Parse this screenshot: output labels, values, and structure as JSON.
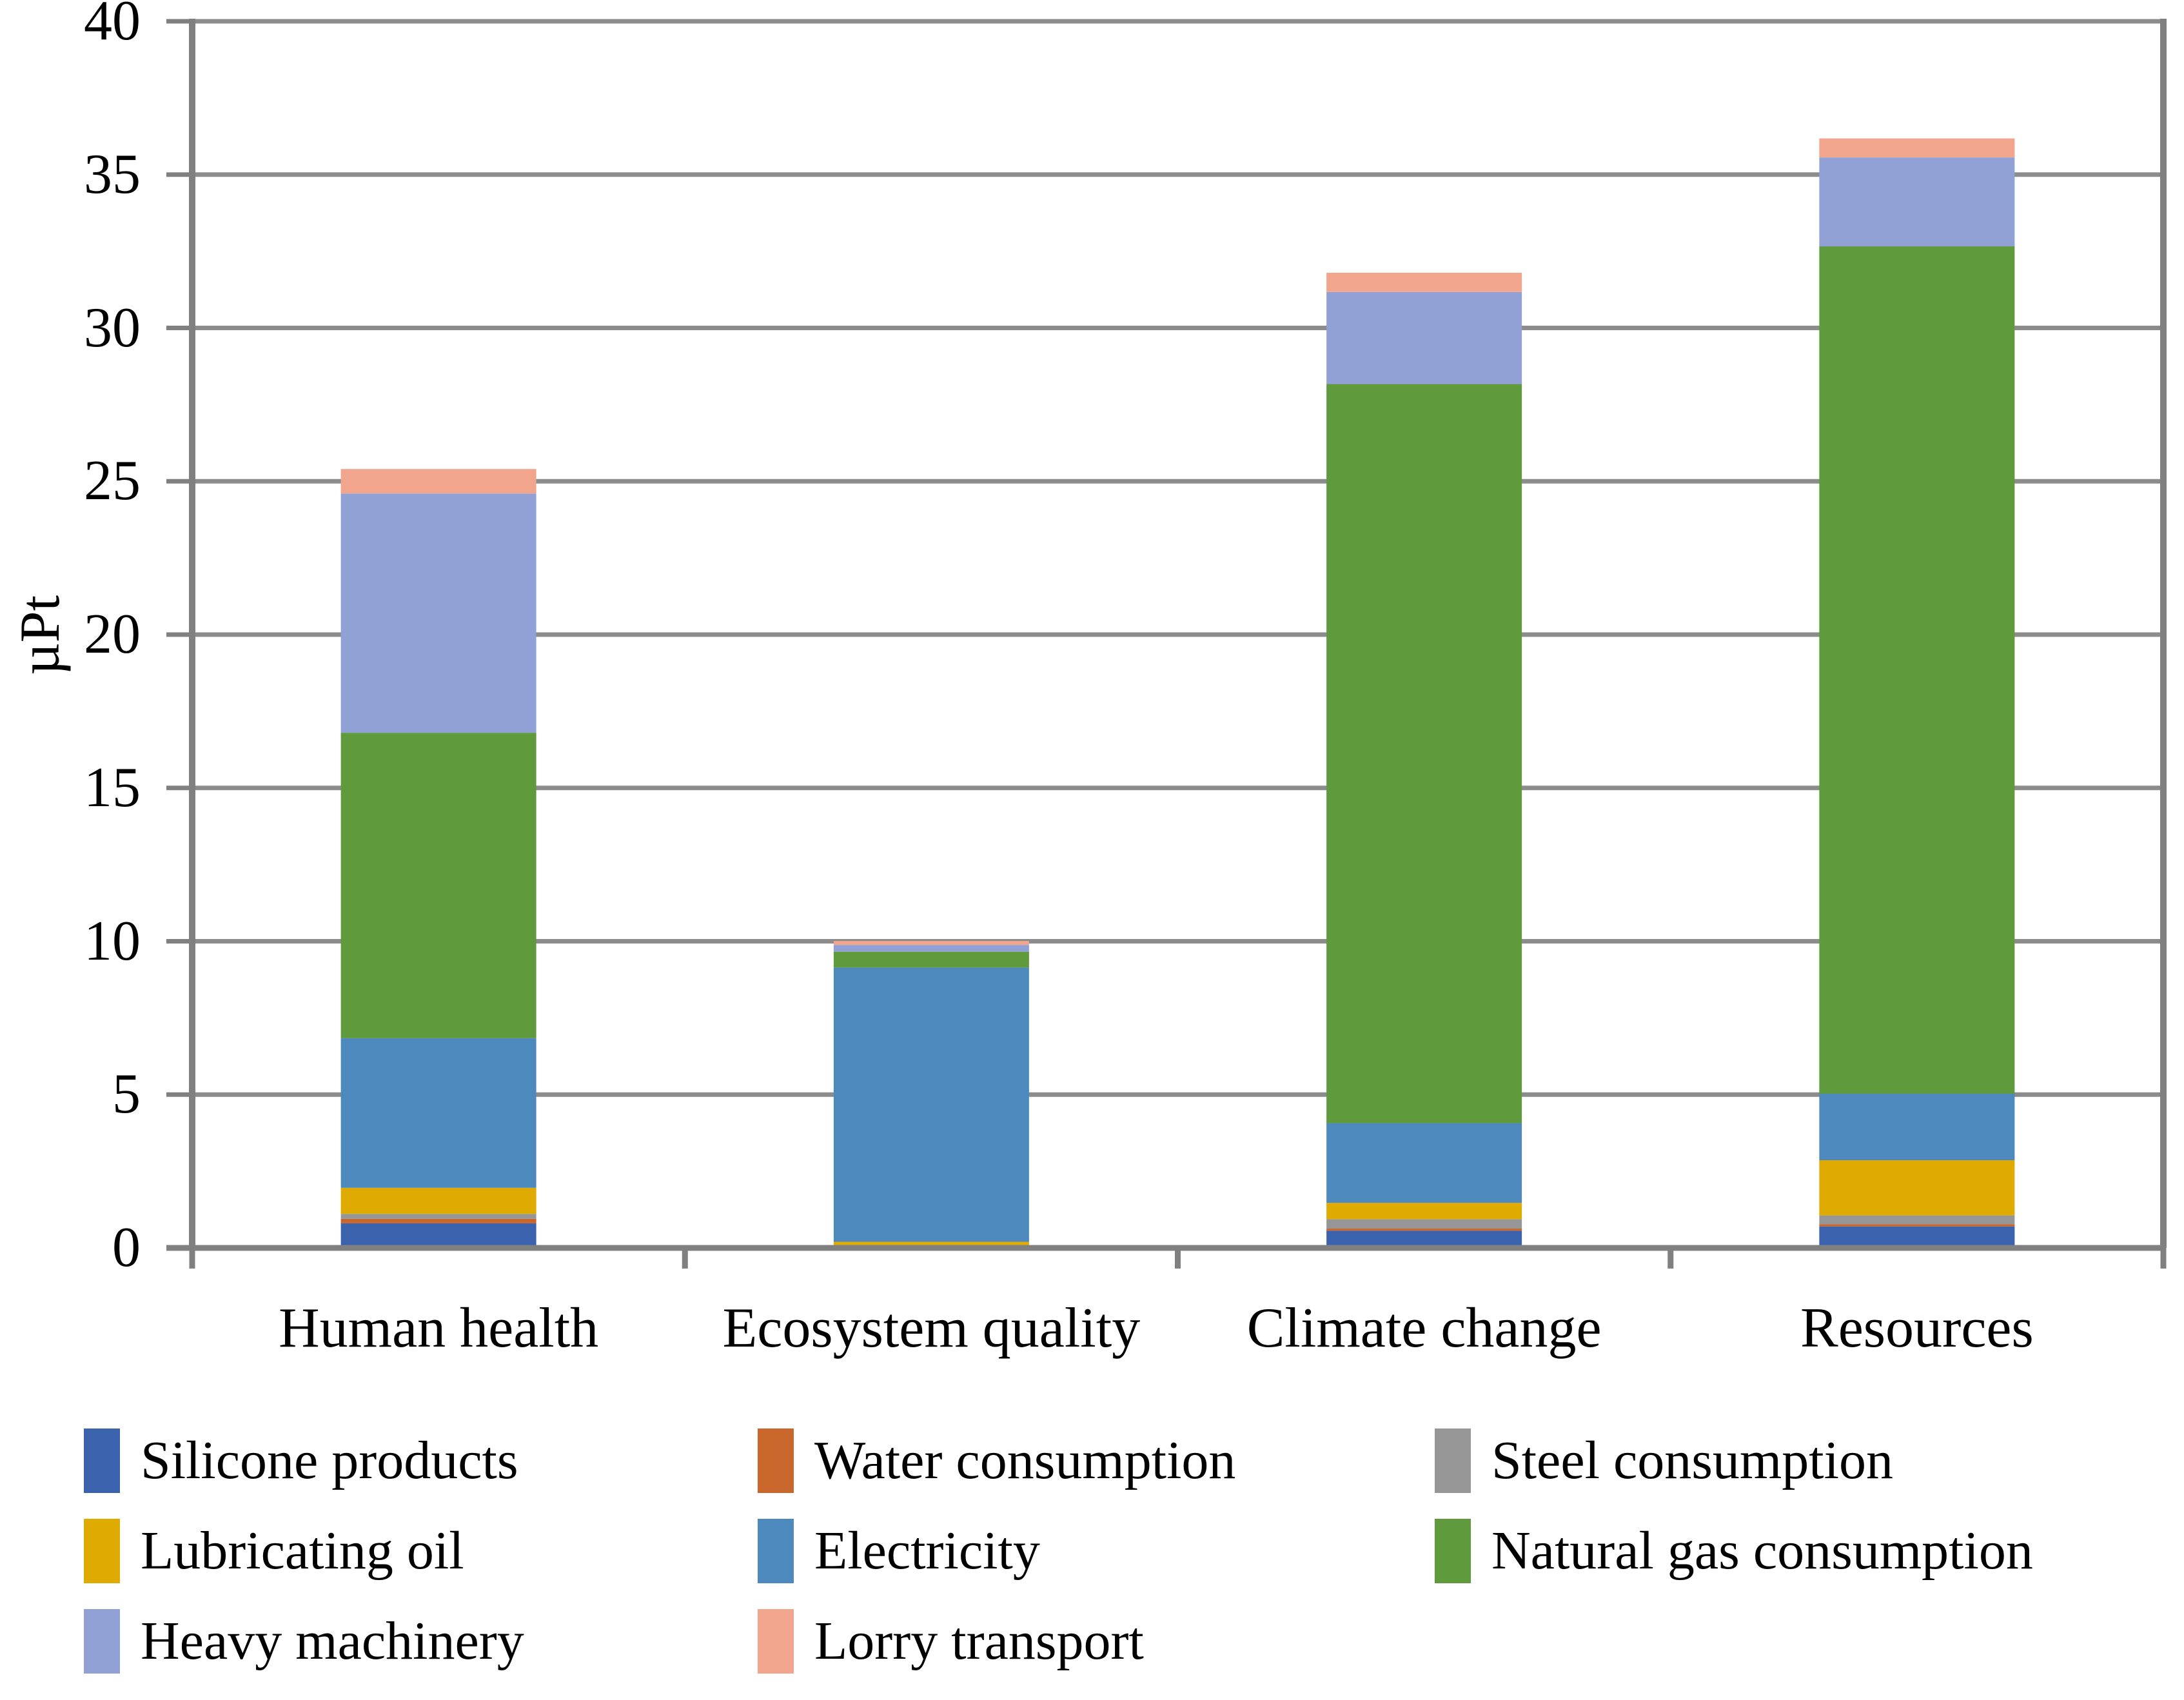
{
  "chart_data": {
    "type": "bar",
    "stacked": true,
    "title": "",
    "xlabel": "",
    "ylabel": "µPt",
    "ylim": [
      0,
      40
    ],
    "ytick_step": 5,
    "ytick_labels": [
      "0",
      "5",
      "10",
      "15",
      "20",
      "25",
      "30",
      "35",
      "40"
    ],
    "grid": true,
    "legend_position": "bottom",
    "legend_columns": 3,
    "categories": [
      "Human health",
      "Ecosystem quality",
      "Climate change",
      "Resources"
    ],
    "series": [
      {
        "name": "Silicone products",
        "color": "#3B62AC",
        "values": [
          0.8,
          0.0,
          0.56,
          0.7
        ]
      },
      {
        "name": "Water consumption",
        "color": "#C8662B",
        "values": [
          0.15,
          0.0,
          0.07,
          0.07
        ]
      },
      {
        "name": "Steel consumption",
        "color": "#969696",
        "values": [
          0.16,
          0.0,
          0.31,
          0.29
        ]
      },
      {
        "name": "Lubricating oil",
        "color": "#E0AB00",
        "values": [
          0.85,
          0.2,
          0.53,
          1.8
        ]
      },
      {
        "name": "Electricity",
        "color": "#4E89BE",
        "values": [
          4.88,
          8.94,
          2.6,
          2.17
        ]
      },
      {
        "name": "Natural gas consumption",
        "color": "#5F9A3D",
        "values": [
          9.96,
          0.52,
          24.1,
          27.63
        ]
      },
      {
        "name": "Heavy machinery",
        "color": "#91A1D6",
        "values": [
          7.8,
          0.22,
          3.0,
          2.9
        ]
      },
      {
        "name": "Lorry transport",
        "color": "#F0A58C",
        "values": [
          0.8,
          0.13,
          0.63,
          0.62
        ]
      }
    ],
    "stack_totals": [
      25.4,
      10.0,
      31.8,
      36.2
    ],
    "legend_layout": [
      {
        "series": "Silicone products",
        "col": 0,
        "row": 0
      },
      {
        "series": "Water consumption",
        "col": 1,
        "row": 0
      },
      {
        "series": "Steel consumption",
        "col": 2,
        "row": 0
      },
      {
        "series": "Lubricating oil",
        "col": 0,
        "row": 1
      },
      {
        "series": "Electricity",
        "col": 1,
        "row": 1
      },
      {
        "series": "Natural gas consumption",
        "col": 2,
        "row": 1
      },
      {
        "series": "Heavy machinery",
        "col": 0,
        "row": 2
      },
      {
        "series": "Lorry transport",
        "col": 1,
        "row": 2
      }
    ]
  },
  "colors": {
    "gridline": "#8C8C8C",
    "axis": "#808080",
    "text": "#000000",
    "background": "#FFFFFF"
  }
}
